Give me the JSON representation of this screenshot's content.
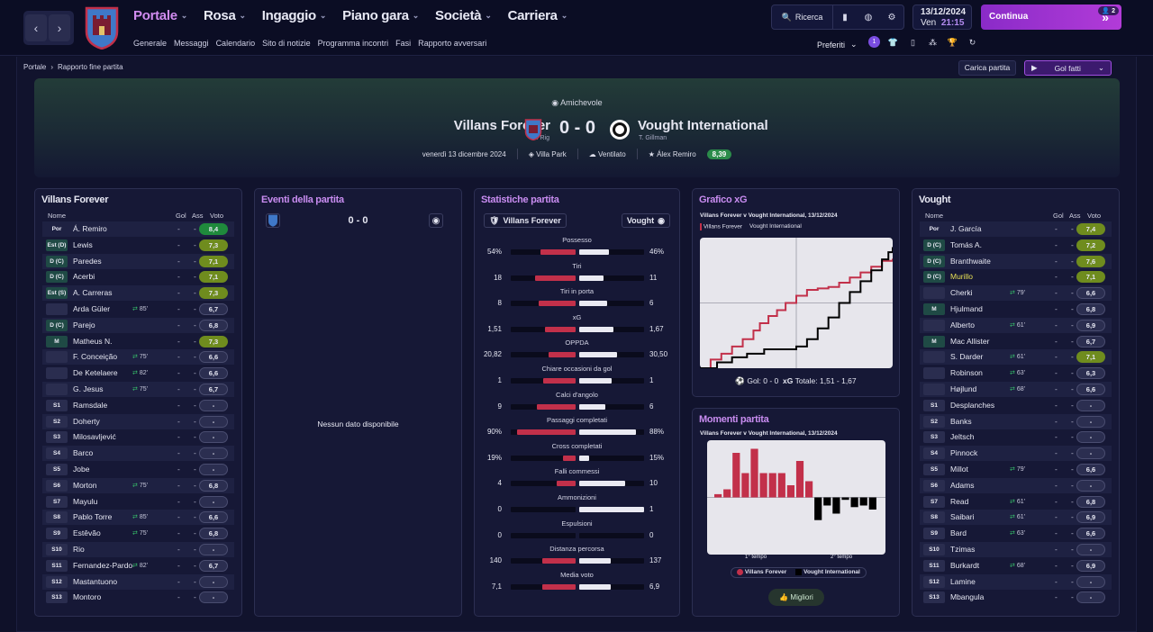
{
  "nav": {
    "items": [
      "Portale",
      "Rosa",
      "Ingaggio",
      "Piano gara",
      "Società",
      "Carriera"
    ],
    "active": 0,
    "sub": [
      "Generale",
      "Messaggi",
      "Calendario",
      "Sito di notizie",
      "Programma incontri",
      "Fasi",
      "Rapporto avversari"
    ]
  },
  "toolbar": {
    "search": "Ricerca",
    "date": "13/12/2024",
    "day": "Ven",
    "time": "21:15",
    "continue": "Continua",
    "badge": "2",
    "preferiti": "Preferiti",
    "msg_count": "1"
  },
  "breadcrumb": {
    "root": "Portale",
    "current": "Rapporto fine partita"
  },
  "actions": {
    "load": "Carica partita",
    "goals": "Gol fatti"
  },
  "match": {
    "competition": "Amichevole",
    "home": "Villans Forever",
    "home_manager": "G. Rig",
    "away": "Vought International",
    "away_manager": "T. Gillman",
    "score": "0 - 0",
    "date": "venerdì 13 dicembre 2024",
    "stadium": "Villa Park",
    "weather": "Ventilato",
    "motm": "Álex Remiro",
    "motm_rating": "8,39"
  },
  "colors": {
    "accent": "#c88cf0",
    "home": "#c2304a",
    "away": "#eaeaf2"
  },
  "home_lineup": {
    "title": "Villans Forever",
    "headers": {
      "name": "Nome",
      "goals": "Gol",
      "assists": "Ass",
      "rating": "Voto"
    },
    "rows": [
      {
        "pos": "Por",
        "name": "Á. Remiro",
        "sub": "",
        "g": "-",
        "a": "-",
        "r": "8,4",
        "c": "hi"
      },
      {
        "pos": "Est (D)",
        "name": "Lewis",
        "sub": "",
        "g": "-",
        "a": "-",
        "r": "7,3",
        "c": "mid"
      },
      {
        "pos": "D (C)",
        "name": "Paredes",
        "sub": "",
        "g": "-",
        "a": "-",
        "r": "7,1",
        "c": "mid"
      },
      {
        "pos": "D (C)",
        "name": "Acerbi",
        "sub": "",
        "g": "-",
        "a": "-",
        "r": "7,1",
        "c": "mid"
      },
      {
        "pos": "Est (S)",
        "name": "A. Carreras",
        "sub": "",
        "g": "-",
        "a": "-",
        "r": "7,3",
        "c": "mid"
      },
      {
        "pos": "",
        "name": "Arda Güler",
        "sub": "85'",
        "g": "-",
        "a": "-",
        "r": "6,7",
        "c": ""
      },
      {
        "pos": "D (C)",
        "name": "Parejo",
        "sub": "",
        "g": "-",
        "a": "-",
        "r": "6,8",
        "c": ""
      },
      {
        "pos": "M",
        "name": "Matheus N.",
        "sub": "",
        "g": "-",
        "a": "-",
        "r": "7,3",
        "c": "mid"
      },
      {
        "pos": "",
        "name": "F. Conceição",
        "sub": "75'",
        "g": "-",
        "a": "-",
        "r": "6,6",
        "c": ""
      },
      {
        "pos": "",
        "name": "De Ketelaere",
        "sub": "82'",
        "g": "-",
        "a": "-",
        "r": "6,6",
        "c": ""
      },
      {
        "pos": "",
        "name": "G. Jesus",
        "sub": "75'",
        "g": "-",
        "a": "-",
        "r": "6,7",
        "c": ""
      },
      {
        "pos": "S1",
        "name": "Ramsdale",
        "sub": "",
        "g": "-",
        "a": "-",
        "r": "-",
        "c": ""
      },
      {
        "pos": "S2",
        "name": "Doherty",
        "sub": "",
        "g": "-",
        "a": "-",
        "r": "-",
        "c": ""
      },
      {
        "pos": "S3",
        "name": "Milosavljević",
        "sub": "",
        "g": "-",
        "a": "-",
        "r": "-",
        "c": ""
      },
      {
        "pos": "S4",
        "name": "Barco",
        "sub": "",
        "g": "-",
        "a": "-",
        "r": "-",
        "c": ""
      },
      {
        "pos": "S5",
        "name": "Jobe",
        "sub": "",
        "g": "-",
        "a": "-",
        "r": "-",
        "c": ""
      },
      {
        "pos": "S6",
        "name": "Morton",
        "sub": "75'",
        "g": "-",
        "a": "-",
        "r": "6,8",
        "c": ""
      },
      {
        "pos": "S7",
        "name": "Mayulu",
        "sub": "",
        "g": "-",
        "a": "-",
        "r": "-",
        "c": ""
      },
      {
        "pos": "S8",
        "name": "Pablo Torre",
        "sub": "85'",
        "g": "-",
        "a": "-",
        "r": "6,6",
        "c": ""
      },
      {
        "pos": "S9",
        "name": "Estêvão",
        "sub": "75'",
        "g": "-",
        "a": "-",
        "r": "6,8",
        "c": ""
      },
      {
        "pos": "S10",
        "name": "Rio",
        "sub": "",
        "g": "-",
        "a": "-",
        "r": "-",
        "c": ""
      },
      {
        "pos": "S11",
        "name": "Fernandez-Pardo",
        "sub": "82'",
        "g": "-",
        "a": "-",
        "r": "6,7",
        "c": ""
      },
      {
        "pos": "S12",
        "name": "Mastantuono",
        "sub": "",
        "g": "-",
        "a": "-",
        "r": "-",
        "c": ""
      },
      {
        "pos": "S13",
        "name": "Montoro",
        "sub": "",
        "g": "-",
        "a": "-",
        "r": "-",
        "c": ""
      }
    ]
  },
  "events": {
    "title": "Eventi della partita",
    "score": "0 - 0",
    "empty": "Nessun dato disponibile"
  },
  "stats": {
    "title": "Statistiche partita",
    "home": "Villans Forever",
    "away": "Vought",
    "rows": [
      {
        "label": "Possesso",
        "h": "54%",
        "a": "46%",
        "hf": 0.54,
        "af": 0.46
      },
      {
        "label": "Tiri",
        "h": "18",
        "a": "11",
        "hf": 0.62,
        "af": 0.38
      },
      {
        "label": "Tiri in porta",
        "h": "8",
        "a": "6",
        "hf": 0.57,
        "af": 0.43
      },
      {
        "label": "xG",
        "h": "1,51",
        "a": "1,67",
        "hf": 0.47,
        "af": 0.53
      },
      {
        "label": "OPPDA",
        "h": "20,82",
        "a": "30,50",
        "hf": 0.41,
        "af": 0.59
      },
      {
        "label": "Chiare occasioni da gol",
        "h": "1",
        "a": "1",
        "hf": 0.5,
        "af": 0.5
      },
      {
        "label": "Calci d'angolo",
        "h": "9",
        "a": "6",
        "hf": 0.6,
        "af": 0.4
      },
      {
        "label": "Passaggi completati",
        "h": "90%",
        "a": "88%",
        "hf": 0.9,
        "af": 0.88
      },
      {
        "label": "Cross completati",
        "h": "19%",
        "a": "15%",
        "hf": 0.19,
        "af": 0.15
      },
      {
        "label": "Falli commessi",
        "h": "4",
        "a": "10",
        "hf": 0.29,
        "af": 0.71
      },
      {
        "label": "Ammonizioni",
        "h": "0",
        "a": "1",
        "hf": 0.0,
        "af": 1.0
      },
      {
        "label": "Espulsioni",
        "h": "0",
        "a": "0",
        "hf": 0.0,
        "af": 0.0
      },
      {
        "label": "Distanza percorsa",
        "h": "140",
        "a": "137",
        "hf": 0.51,
        "af": 0.49
      },
      {
        "label": "Media voto",
        "h": "7,1",
        "a": "6,9",
        "hf": 0.51,
        "af": 0.49
      }
    ]
  },
  "xg": {
    "title": "Grafico xG",
    "subtitle": "Villans Forever v Vought International, 13/12/2024",
    "legend": [
      "Villans Forever",
      "Vought International"
    ],
    "goals_label": "Gol: 0 - 0",
    "xg_label": "xG",
    "xg_total": "Totale: 1,51 - 1,67"
  },
  "momentum": {
    "title": "Momenti partita",
    "subtitle": "Villans Forever v Vought International, 13/12/2024",
    "half1": "1° tempo",
    "half2": "2° tempo",
    "legend": [
      "Villans Forever",
      "Vought International"
    ],
    "button": "Migliori"
  },
  "chart_data": [
    {
      "type": "line",
      "title": "Grafico xG",
      "series": [
        {
          "name": "Villans Forever",
          "x": [
            0,
            5,
            10,
            15,
            20,
            25,
            28,
            32,
            36,
            40,
            45,
            50,
            55,
            60,
            65,
            70,
            75,
            80,
            85,
            90
          ],
          "y": [
            0,
            0.12,
            0.2,
            0.3,
            0.4,
            0.52,
            0.62,
            0.72,
            0.8,
            0.9,
            1.0,
            1.08,
            1.1,
            1.12,
            1.18,
            1.25,
            1.32,
            1.4,
            1.48,
            1.51
          ]
        },
        {
          "name": "Vought International",
          "x": [
            0,
            8,
            15,
            22,
            30,
            40,
            45,
            50,
            55,
            60,
            65,
            70,
            75,
            80,
            85,
            88,
            90
          ],
          "y": [
            0,
            0.08,
            0.15,
            0.2,
            0.26,
            0.26,
            0.3,
            0.4,
            0.55,
            0.7,
            0.9,
            1.05,
            1.2,
            1.35,
            1.5,
            1.6,
            1.67
          ]
        }
      ]
    },
    {
      "type": "bar",
      "title": "Momenti partita",
      "series": [
        {
          "name": "Villans Forever",
          "values": [
            0.04,
            0.1,
            0.55,
            0.3,
            0.6,
            0.3,
            0.3,
            0.3,
            0.15,
            0.45,
            0.2,
            0,
            0,
            0,
            0,
            0,
            0,
            0
          ]
        },
        {
          "name": "Vought International",
          "values": [
            0,
            0,
            0,
            0,
            0,
            0,
            0,
            0,
            0,
            0,
            0,
            -0.28,
            -0.1,
            -0.2,
            -0.03,
            -0.12,
            -0.1,
            -0.15
          ]
        }
      ]
    }
  ],
  "away_lineup": {
    "title": "Vought",
    "headers": {
      "name": "Nome",
      "goals": "Gol",
      "assists": "Ass",
      "rating": "Voto"
    },
    "rows": [
      {
        "pos": "Por",
        "name": "J. García",
        "sub": "",
        "g": "-",
        "a": "-",
        "r": "7,4",
        "c": "mid"
      },
      {
        "pos": "D (C)",
        "name": "Tomás A.",
        "sub": "",
        "g": "-",
        "a": "-",
        "r": "7,2",
        "c": "mid"
      },
      {
        "pos": "D (C)",
        "name": "Branthwaite",
        "sub": "",
        "g": "-",
        "a": "-",
        "r": "7,6",
        "c": "mid"
      },
      {
        "pos": "D (C)",
        "name": "Murillo",
        "sub": "",
        "g": "-",
        "a": "-",
        "r": "7,1",
        "c": "mid",
        "y": true
      },
      {
        "pos": "",
        "name": "Cherki",
        "sub": "79'",
        "g": "-",
        "a": "-",
        "r": "6,6",
        "c": ""
      },
      {
        "pos": "M",
        "name": "Hjulmand",
        "sub": "",
        "g": "-",
        "a": "-",
        "r": "6,8",
        "c": ""
      },
      {
        "pos": "",
        "name": "Alberto",
        "sub": "61'",
        "g": "-",
        "a": "-",
        "r": "6,9",
        "c": ""
      },
      {
        "pos": "M",
        "name": "Mac Allister",
        "sub": "",
        "g": "-",
        "a": "-",
        "r": "6,7",
        "c": ""
      },
      {
        "pos": "",
        "name": "S. Darder",
        "sub": "61'",
        "g": "-",
        "a": "-",
        "r": "7,1",
        "c": "mid"
      },
      {
        "pos": "",
        "name": "Robinson",
        "sub": "63'",
        "g": "-",
        "a": "-",
        "r": "6,3",
        "c": ""
      },
      {
        "pos": "",
        "name": "Højlund",
        "sub": "68'",
        "g": "-",
        "a": "-",
        "r": "6,6",
        "c": ""
      },
      {
        "pos": "S1",
        "name": "Desplanches",
        "sub": "",
        "g": "-",
        "a": "-",
        "r": "-",
        "c": ""
      },
      {
        "pos": "S2",
        "name": "Banks",
        "sub": "",
        "g": "-",
        "a": "-",
        "r": "-",
        "c": ""
      },
      {
        "pos": "S3",
        "name": "Jeltsch",
        "sub": "",
        "g": "-",
        "a": "-",
        "r": "-",
        "c": ""
      },
      {
        "pos": "S4",
        "name": "Pinnock",
        "sub": "",
        "g": "-",
        "a": "-",
        "r": "-",
        "c": ""
      },
      {
        "pos": "S5",
        "name": "Millot",
        "sub": "79'",
        "g": "-",
        "a": "-",
        "r": "6,6",
        "c": ""
      },
      {
        "pos": "S6",
        "name": "Adams",
        "sub": "",
        "g": "-",
        "a": "-",
        "r": "-",
        "c": ""
      },
      {
        "pos": "S7",
        "name": "Read",
        "sub": "61'",
        "g": "-",
        "a": "-",
        "r": "6,8",
        "c": ""
      },
      {
        "pos": "S8",
        "name": "Saibari",
        "sub": "61'",
        "g": "-",
        "a": "-",
        "r": "6,9",
        "c": ""
      },
      {
        "pos": "S9",
        "name": "Bard",
        "sub": "63'",
        "g": "-",
        "a": "-",
        "r": "6,6",
        "c": ""
      },
      {
        "pos": "S10",
        "name": "Tzimas",
        "sub": "",
        "g": "-",
        "a": "-",
        "r": "-",
        "c": ""
      },
      {
        "pos": "S11",
        "name": "Burkardt",
        "sub": "68'",
        "g": "-",
        "a": "-",
        "r": "6,9",
        "c": ""
      },
      {
        "pos": "S12",
        "name": "Lamine",
        "sub": "",
        "g": "-",
        "a": "-",
        "r": "-",
        "c": ""
      },
      {
        "pos": "S13",
        "name": "Mbangula",
        "sub": "",
        "g": "-",
        "a": "-",
        "r": "-",
        "c": ""
      }
    ]
  }
}
